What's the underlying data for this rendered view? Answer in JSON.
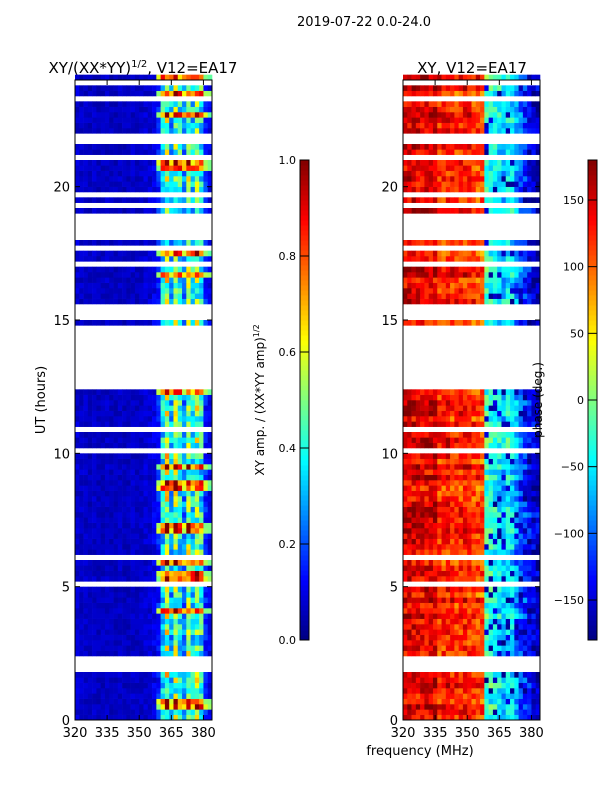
{
  "suptitle": "2019-07-22 0.0-24.0",
  "chart_data": [
    {
      "type": "heatmap",
      "title": "XY/(XX*YY)^1/2, V12=EA17",
      "title_main": "XY/(XX*YY)",
      "title_sup": "1/2",
      "title_tail": ", V12=EA17",
      "xlabel": "",
      "ylabel": "UT (hours)",
      "xlim": [
        320,
        384
      ],
      "ylim": [
        0,
        24
      ],
      "xticks": [
        "320",
        "335",
        "350",
        "365",
        "380"
      ],
      "xtick_values": [
        320,
        335,
        350,
        365,
        380
      ],
      "yticks": [
        "0",
        "5",
        "10",
        "15",
        "20"
      ],
      "ytick_values": [
        0,
        5,
        10,
        15,
        20
      ],
      "colorbar": {
        "label": "XY amp. / (XX*YY amp)",
        "label_sup": "1/2",
        "range": [
          0,
          1
        ],
        "ticks": [
          "0.0",
          "0.2",
          "0.4",
          "0.6",
          "0.8",
          "1.0"
        ],
        "tick_values": [
          0,
          0.2,
          0.4,
          0.6,
          0.8,
          1.0
        ],
        "colormap": "jet"
      },
      "freq_bin_centers_mhz": [
        321,
        323,
        325,
        327,
        329,
        331,
        333,
        335,
        337,
        339,
        341,
        343,
        345,
        347,
        349,
        351,
        353,
        355,
        357,
        359,
        361,
        363,
        365,
        367,
        369,
        371,
        373,
        375,
        377,
        379,
        381,
        383
      ],
      "freq_profile": [
        0.08,
        0.07,
        0.07,
        0.06,
        0.07,
        0.06,
        0.06,
        0.07,
        0.06,
        0.06,
        0.07,
        0.06,
        0.06,
        0.07,
        0.06,
        0.07,
        0.08,
        0.08,
        0.1,
        0.15,
        0.35,
        0.55,
        0.3,
        0.5,
        0.4,
        0.25,
        0.5,
        0.35,
        0.5,
        0.4,
        0.15,
        0.1
      ]
    },
    {
      "type": "heatmap",
      "title": "XY, V12=EA17",
      "xlabel": "frequency (MHz)",
      "ylabel": "",
      "xlim": [
        320,
        384
      ],
      "ylim": [
        0,
        24
      ],
      "xticks": [
        "320",
        "335",
        "350",
        "365",
        "380"
      ],
      "xtick_values": [
        320,
        335,
        350,
        365,
        380
      ],
      "yticks": [
        "0",
        "5",
        "10",
        "15",
        "20"
      ],
      "ytick_values": [
        0,
        5,
        10,
        15,
        20
      ],
      "colorbar": {
        "label": "phase (deg.)",
        "range": [
          -180,
          180
        ],
        "ticks": [
          "−150",
          "−100",
          "−50",
          "0",
          "50",
          "100",
          "150"
        ],
        "tick_values": [
          -150,
          -100,
          -50,
          0,
          50,
          100,
          150
        ],
        "colormap": "jet"
      },
      "freq_bin_centers_mhz": [
        321,
        323,
        325,
        327,
        329,
        331,
        333,
        335,
        337,
        339,
        341,
        343,
        345,
        347,
        349,
        351,
        353,
        355,
        357,
        359,
        361,
        363,
        365,
        367,
        369,
        371,
        373,
        375,
        377,
        379,
        381,
        383
      ],
      "freq_profile": [
        150,
        155,
        150,
        145,
        140,
        145,
        150,
        150,
        120,
        125,
        130,
        125,
        120,
        125,
        130,
        125,
        120,
        115,
        110,
        -20,
        -30,
        -40,
        -50,
        -60,
        -40,
        -50,
        -80,
        -100,
        -120,
        -140,
        -150,
        -160
      ]
    }
  ],
  "flagged_intervals_hours": [
    [
      1.8,
      2.4
    ],
    [
      5.0,
      5.2
    ],
    [
      6.0,
      6.3
    ],
    [
      10.0,
      10.2
    ],
    [
      10.8,
      10.9
    ],
    [
      12.3,
      14.8
    ],
    [
      15.0,
      15.6
    ],
    [
      17.0,
      17.15
    ],
    [
      17.6,
      17.8
    ],
    [
      18.0,
      18.9
    ],
    [
      19.2,
      19.3
    ],
    [
      19.6,
      19.7
    ],
    [
      20.1,
      20.2
    ],
    [
      21.0,
      21.1
    ],
    [
      21.5,
      22.0
    ],
    [
      23.0,
      23.05
    ],
    [
      23.2,
      23.45
    ],
    [
      23.8,
      24.0
    ]
  ]
}
